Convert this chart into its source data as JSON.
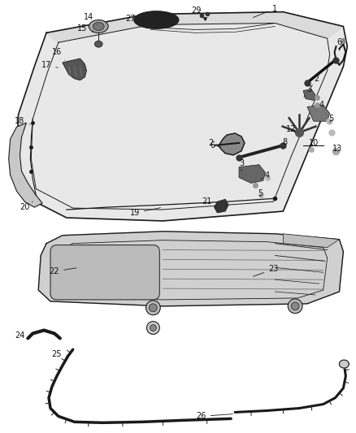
{
  "bg_color": "#ffffff",
  "line_color": "#1a1a1a",
  "label_color": "#111111",
  "fig_width": 4.38,
  "fig_height": 5.33,
  "hood_fill": "#e8e8e8",
  "hood_fill2": "#d5d5d5",
  "dark_part": "#333333",
  "mid_part": "#888888",
  "light_part": "#cccccc"
}
